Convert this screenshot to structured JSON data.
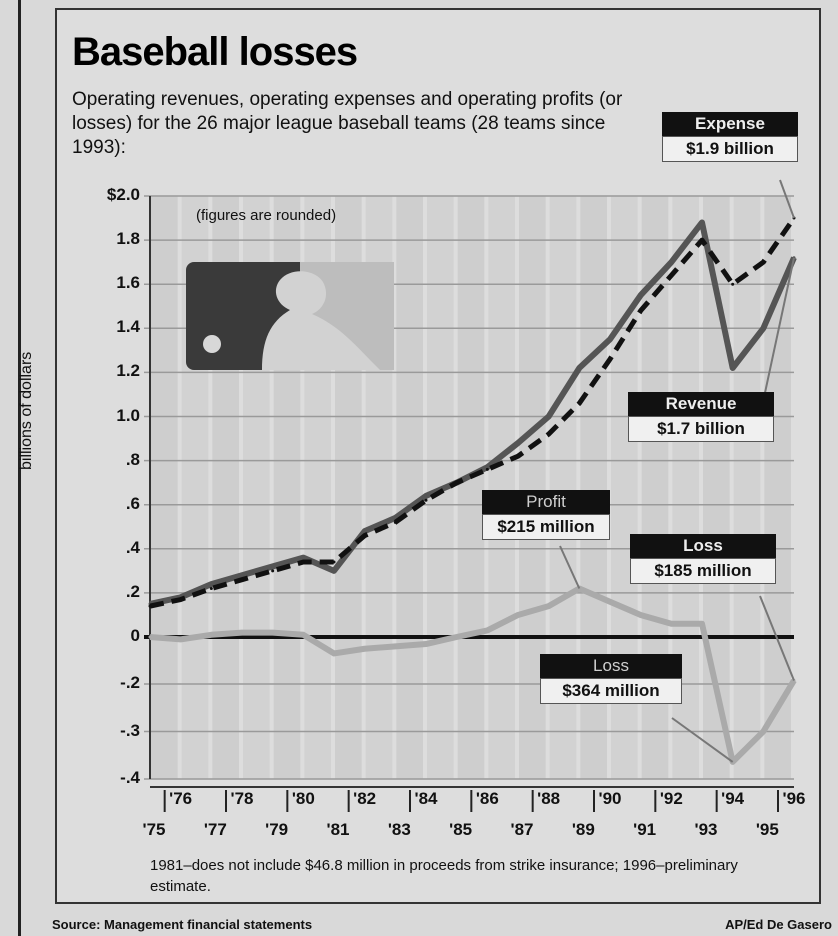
{
  "title": "Baseball losses",
  "subtitle": "Operating revenues, operating expenses and operating profits (or losses) for the 26 major league baseball teams (28 teams since 1993):",
  "note": "(figures are rounded)",
  "footnote": "1981–does not include $46.8 million in proceeds from strike insurance; 1996–preliminary estimate.",
  "source": "Source: Management financial statements",
  "credit": "AP/Ed De Gasero",
  "callouts": {
    "expense": {
      "head": "Expense",
      "value": "$1.9 billion"
    },
    "revenue": {
      "head": "Revenue",
      "value": "$1.7 billion"
    },
    "profit": {
      "head": "Profit",
      "value": "$215 million"
    },
    "loss96": {
      "head": "Loss",
      "value": "$185 million"
    },
    "loss94": {
      "head": "Loss",
      "value": "$364 million"
    }
  },
  "chart_data": {
    "type": "line",
    "ylabel": "billions of dollars",
    "ylim": [
      -0.4,
      2.0
    ],
    "ytick_labels": [
      "$2.0",
      "1.8",
      "1.6",
      "1.4",
      "1.2",
      "1.0",
      ".8",
      ".6",
      ".4",
      ".2",
      "0",
      "-.2",
      "-.3",
      "-.4"
    ],
    "x_top_labels": [
      "'76",
      "'78",
      "'80",
      "'82",
      "'84",
      "'86",
      "'88",
      "'90",
      "'92",
      "'94",
      "'96"
    ],
    "x_bottom_labels": [
      "'75",
      "'77",
      "'79",
      "'81",
      "'83",
      "'85",
      "'87",
      "'89",
      "'91",
      "'93",
      "'95"
    ],
    "x": [
      1975,
      1976,
      1977,
      1978,
      1979,
      1980,
      1981,
      1982,
      1983,
      1984,
      1985,
      1986,
      1987,
      1988,
      1989,
      1990,
      1991,
      1992,
      1993,
      1994,
      1995,
      1996
    ],
    "series": [
      {
        "name": "Revenue",
        "style": "solid-dark",
        "values": [
          0.15,
          0.18,
          0.24,
          0.28,
          0.32,
          0.36,
          0.3,
          0.48,
          0.54,
          0.64,
          0.7,
          0.77,
          0.88,
          1.0,
          1.22,
          1.35,
          1.55,
          1.7,
          1.88,
          1.22,
          1.4,
          1.72
        ]
      },
      {
        "name": "Expense",
        "style": "dashed",
        "values": [
          0.14,
          0.17,
          0.22,
          0.26,
          0.3,
          0.34,
          0.34,
          0.46,
          0.52,
          0.62,
          0.7,
          0.76,
          0.82,
          0.92,
          1.06,
          1.26,
          1.48,
          1.64,
          1.8,
          1.6,
          1.7,
          1.9
        ]
      },
      {
        "name": "Profit",
        "style": "solid-light",
        "values": [
          0.0,
          -0.01,
          0.01,
          0.02,
          0.02,
          0.01,
          -0.07,
          -0.05,
          -0.04,
          -0.03,
          0.0,
          0.03,
          0.1,
          0.14,
          0.22,
          0.16,
          0.1,
          0.06,
          0.06,
          -0.364,
          -0.3,
          -0.185
        ]
      }
    ],
    "grid": true
  },
  "colors": {
    "revenue": "#555555",
    "expense": "#111111",
    "profit": "#aaaaaa"
  }
}
